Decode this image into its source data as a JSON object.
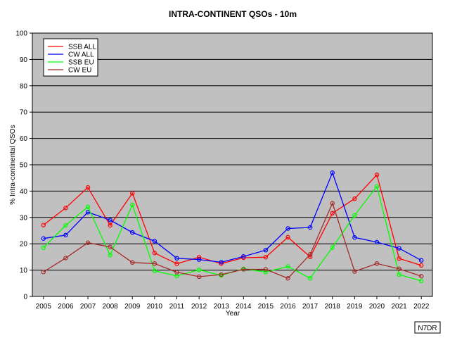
{
  "chart_data": {
    "type": "line",
    "title": "INTRA-CONTINENT QSOs - 10m",
    "xlabel": "Year",
    "ylabel": "% Intra-continental QSOs",
    "ylim": [
      0,
      100
    ],
    "yticks": [
      0,
      10,
      20,
      30,
      40,
      50,
      60,
      70,
      80,
      90,
      100
    ],
    "categories": [
      "2005",
      "2006",
      "2007",
      "2008",
      "2009",
      "2010",
      "2011",
      "2012",
      "2013",
      "2014",
      "2015",
      "2016",
      "2017",
      "2018",
      "2019",
      "2020",
      "2021",
      "2022"
    ],
    "grid": true,
    "legend_position": "top-left",
    "plot_background": "#c0c0c0",
    "series": [
      {
        "name": "SSB ALL",
        "color": "#ff0000",
        "values": [
          27.1,
          33.6,
          41.4,
          27.0,
          39.2,
          16.5,
          12.4,
          14.9,
          12.5,
          14.7,
          14.9,
          22.5,
          15.0,
          31.6,
          37.1,
          46.2,
          14.4,
          11.8
        ]
      },
      {
        "name": "CW ALL",
        "color": "#0000ff",
        "values": [
          22.0,
          23.3,
          32.0,
          29.0,
          24.3,
          21.0,
          14.5,
          14.0,
          13.0,
          15.2,
          17.6,
          25.8,
          26.2,
          47.0,
          22.4,
          20.6,
          18.3,
          13.7
        ]
      },
      {
        "name": "SSB EU",
        "color": "#00ff00",
        "values": [
          18.5,
          27.0,
          34.0,
          15.7,
          34.8,
          9.7,
          7.8,
          10.1,
          8.0,
          10.5,
          9.3,
          11.4,
          6.9,
          18.6,
          30.8,
          41.8,
          8.3,
          5.9
        ]
      },
      {
        "name": "CW EU",
        "color": "#a52a2a",
        "values": [
          9.3,
          14.6,
          20.4,
          18.8,
          12.9,
          12.5,
          9.2,
          7.5,
          8.3,
          10.3,
          10.3,
          6.9,
          16.0,
          35.4,
          9.5,
          12.5,
          10.5,
          7.7
        ]
      }
    ]
  },
  "credit": "N7DR"
}
